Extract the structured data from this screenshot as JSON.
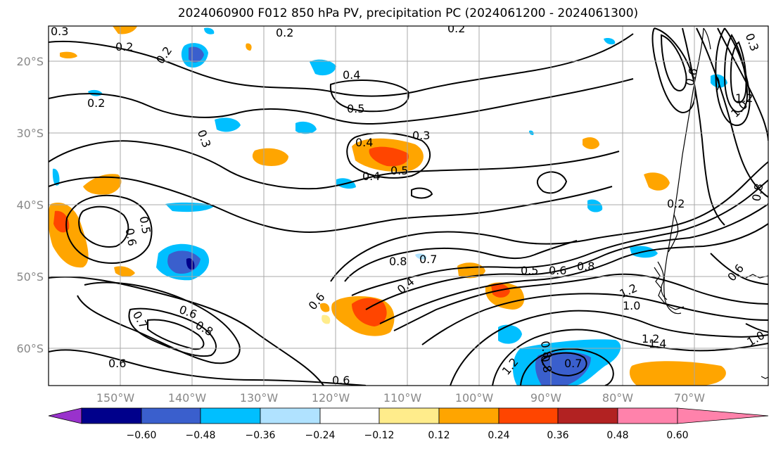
{
  "title": "2024060900 F012 850 hPa PV, precipitation PC (2024061200 - 2024061300)",
  "lat_labels": [
    "20°S",
    "30°S",
    "40°S",
    "50°S",
    "60°S"
  ],
  "lon_labels": [
    "150°W",
    "140°W",
    "130°W",
    "120°W",
    "110°W",
    "100°W",
    "90°W",
    "80°W",
    "70°W"
  ],
  "colorbar": {
    "ticks": [
      "−0.60",
      "−0.48",
      "−0.36",
      "−0.24",
      "−0.12",
      "0.12",
      "0.24",
      "0.36",
      "0.48",
      "0.60"
    ],
    "colors": [
      "#9932cc",
      "#00008b",
      "#3a5fcd",
      "#00bfff",
      "#b0e2ff",
      "#ffffff",
      "#ffec8b",
      "#ffa500",
      "#ff4500",
      "#b22222",
      "#ff82ab"
    ]
  },
  "contour_labels": [
    "0.2",
    "0.3",
    "0.4",
    "0.5",
    "0.6",
    "0.7",
    "0.8",
    "1.0",
    "1.2",
    "1.4"
  ],
  "colors": {
    "contour": "#000000",
    "grid": "#a8a8a8",
    "coast": "#000000"
  }
}
